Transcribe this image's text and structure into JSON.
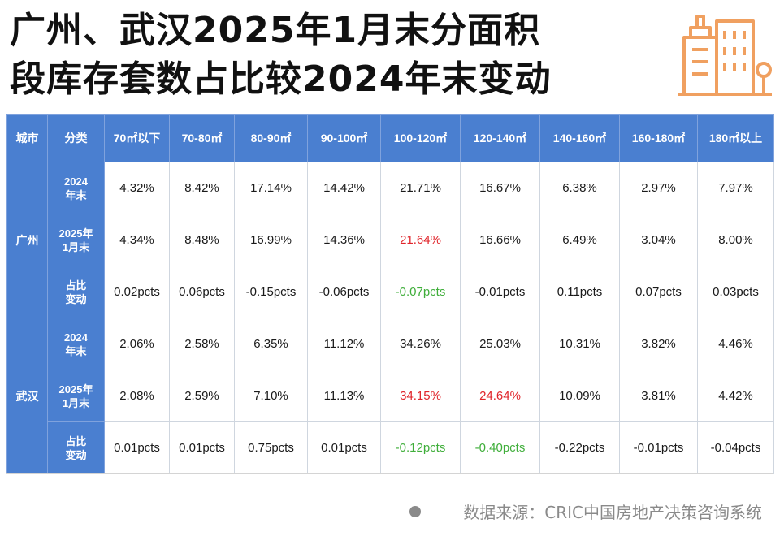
{
  "title": {
    "line1": "广州、武汉2025年1月末分面积",
    "line2": "段库存套数占比较2024年末变动"
  },
  "logo_icon": "buildings-icon",
  "colors": {
    "header_bg": "#4a7fd0",
    "highlight_red": "#e0242a",
    "highlight_green": "#3fae3a",
    "logo": "#f0a060"
  },
  "table": {
    "headers": [
      "城市",
      "分类",
      "70㎡以下",
      "70-80㎡",
      "80-90㎡",
      "90-100㎡",
      "100-120㎡",
      "120-140㎡",
      "140-160㎡",
      "160-180㎡",
      "180㎡以上"
    ],
    "groups": [
      {
        "city": "广州",
        "rows": [
          {
            "category": "2024\n年末",
            "values": [
              "4.32%",
              "8.42%",
              "17.14%",
              "14.42%",
              "21.71%",
              "16.67%",
              "6.38%",
              "2.97%",
              "7.97%"
            ],
            "styles": [
              "",
              "",
              "",
              "",
              "",
              "",
              "",
              "",
              ""
            ]
          },
          {
            "category": "2025年\n1月末",
            "values": [
              "4.34%",
              "8.48%",
              "16.99%",
              "14.36%",
              "21.64%",
              "16.66%",
              "6.49%",
              "3.04%",
              "8.00%"
            ],
            "styles": [
              "",
              "",
              "",
              "",
              "red",
              "",
              "",
              "",
              ""
            ]
          },
          {
            "category": "占比\n变动",
            "values": [
              "0.02pcts",
              "0.06pcts",
              "-0.15pcts",
              "-0.06pcts",
              "-0.07pcts",
              "-0.01pcts",
              "0.11pcts",
              "0.07pcts",
              "0.03pcts"
            ],
            "styles": [
              "",
              "",
              "",
              "",
              "green",
              "",
              "",
              "",
              ""
            ]
          }
        ]
      },
      {
        "city": "武汉",
        "rows": [
          {
            "category": "2024\n年末",
            "values": [
              "2.06%",
              "2.58%",
              "6.35%",
              "11.12%",
              "34.26%",
              "25.03%",
              "10.31%",
              "3.82%",
              "4.46%"
            ],
            "styles": [
              "",
              "",
              "",
              "",
              "",
              "",
              "",
              "",
              ""
            ]
          },
          {
            "category": "2025年\n1月末",
            "values": [
              "2.08%",
              "2.59%",
              "7.10%",
              "11.13%",
              "34.15%",
              "24.64%",
              "10.09%",
              "3.81%",
              "4.42%"
            ],
            "styles": [
              "",
              "",
              "",
              "",
              "red",
              "red",
              "",
              "",
              ""
            ]
          },
          {
            "category": "占比\n变动",
            "values": [
              "0.01pcts",
              "0.01pcts",
              "0.75pcts",
              "0.01pcts",
              "-0.12pcts",
              "-0.40pcts",
              "-0.22pcts",
              "-0.01pcts",
              "-0.04pcts"
            ],
            "styles": [
              "",
              "",
              "",
              "",
              "green",
              "green",
              "",
              "",
              ""
            ]
          }
        ]
      }
    ]
  },
  "source": "数据来源：CRIC中国房地产决策咨询系统"
}
